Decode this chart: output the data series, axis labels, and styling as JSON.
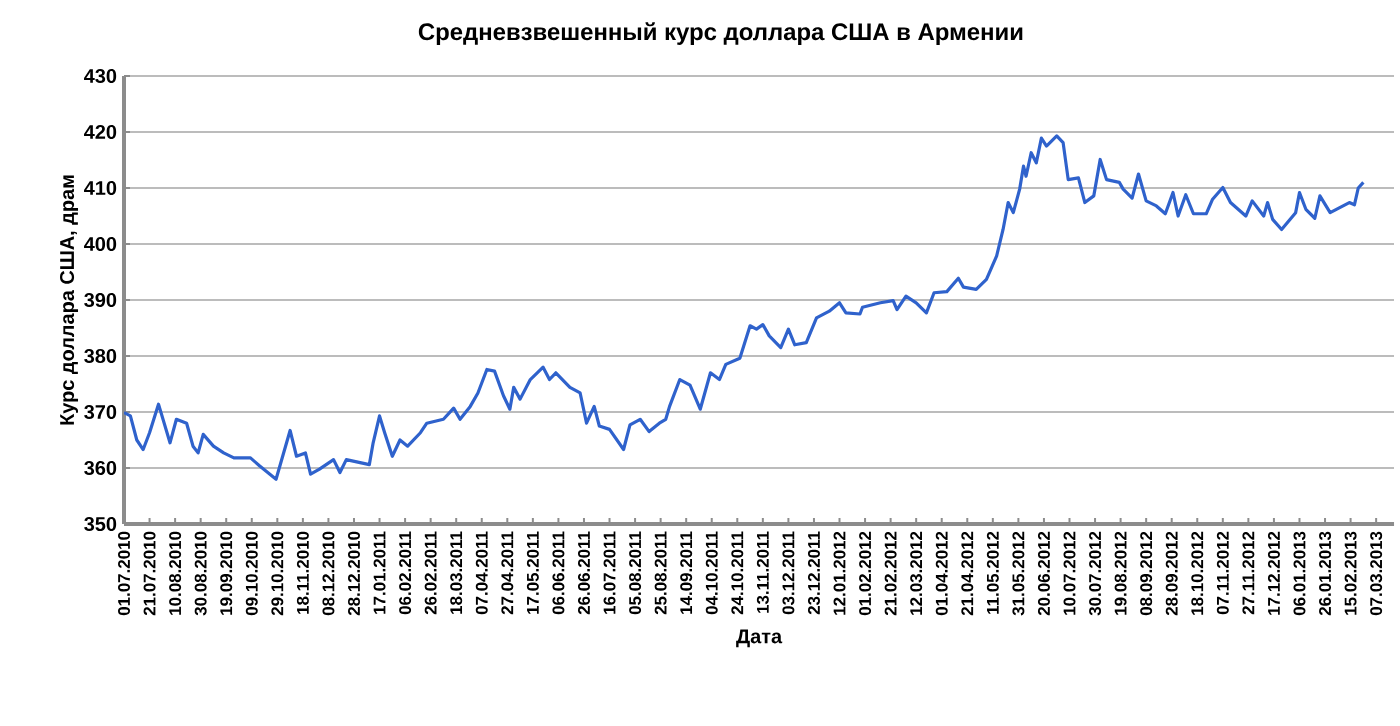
{
  "chart_data": {
    "type": "line",
    "title": "Средневзвешенный курс доллара США в Армении",
    "xlabel": "Дата",
    "ylabel": "Курс доллара США, драм",
    "xlim": [
      "2010-07-01",
      "2013-03-21"
    ],
    "ylim": [
      350,
      430
    ],
    "yticks": [
      350,
      360,
      370,
      380,
      390,
      400,
      410,
      420,
      430
    ],
    "grid": "y",
    "legend": false,
    "marker": "none",
    "line_style": "solid",
    "xticks": [
      {
        "value": "2010-07-01",
        "label": "01.07.2010"
      },
      {
        "value": "2010-07-21",
        "label": "21.07.2010"
      },
      {
        "value": "2010-08-10",
        "label": "10.08.2010"
      },
      {
        "value": "2010-08-30",
        "label": "30.08.2010"
      },
      {
        "value": "2010-09-19",
        "label": "19.09.2010"
      },
      {
        "value": "2010-10-09",
        "label": "09.10.2010"
      },
      {
        "value": "2010-10-29",
        "label": "29.10.2010"
      },
      {
        "value": "2010-11-18",
        "label": "18.11.2010"
      },
      {
        "value": "2010-12-08",
        "label": "08.12.2010"
      },
      {
        "value": "2010-12-28",
        "label": "28.12.2010"
      },
      {
        "value": "2011-01-17",
        "label": "17.01.2011"
      },
      {
        "value": "2011-02-06",
        "label": "06.02.2011"
      },
      {
        "value": "2011-02-26",
        "label": "26.02.2011"
      },
      {
        "value": "2011-03-18",
        "label": "18.03.2011"
      },
      {
        "value": "2011-04-07",
        "label": "07.04.2011"
      },
      {
        "value": "2011-04-27",
        "label": "27.04.2011"
      },
      {
        "value": "2011-05-17",
        "label": "17.05.2011"
      },
      {
        "value": "2011-06-06",
        "label": "06.06.2011"
      },
      {
        "value": "2011-06-26",
        "label": "26.06.2011"
      },
      {
        "value": "2011-07-16",
        "label": "16.07.2011"
      },
      {
        "value": "2011-08-05",
        "label": "05.08.2011"
      },
      {
        "value": "2011-08-25",
        "label": "25.08.2011"
      },
      {
        "value": "2011-09-14",
        "label": "14.09.2011"
      },
      {
        "value": "2011-10-04",
        "label": "04.10.2011"
      },
      {
        "value": "2011-10-24",
        "label": "24.10.2011"
      },
      {
        "value": "2011-11-13",
        "label": "13.11.2011"
      },
      {
        "value": "2011-12-03",
        "label": "03.12.2011"
      },
      {
        "value": "2011-12-23",
        "label": "23.12.2011"
      },
      {
        "value": "2012-01-12",
        "label": "12.01.2012"
      },
      {
        "value": "2012-02-01",
        "label": "01.02.2012"
      },
      {
        "value": "2012-02-21",
        "label": "21.02.2012"
      },
      {
        "value": "2012-03-12",
        "label": "12.03.2012"
      },
      {
        "value": "2012-04-01",
        "label": "01.04.2012"
      },
      {
        "value": "2012-04-21",
        "label": "21.04.2012"
      },
      {
        "value": "2012-05-11",
        "label": "11.05.2012"
      },
      {
        "value": "2012-05-31",
        "label": "31.05.2012"
      },
      {
        "value": "2012-06-20",
        "label": "20.06.2012"
      },
      {
        "value": "2012-07-10",
        "label": "10.07.2012"
      },
      {
        "value": "2012-07-30",
        "label": "30.07.2012"
      },
      {
        "value": "2012-08-19",
        "label": "19.08.2012"
      },
      {
        "value": "2012-09-08",
        "label": "08.09.2012"
      },
      {
        "value": "2012-09-28",
        "label": "28.09.2012"
      },
      {
        "value": "2012-10-18",
        "label": "18.10.2012"
      },
      {
        "value": "2012-11-07",
        "label": "07.11.2012"
      },
      {
        "value": "2012-11-27",
        "label": "27.11.2012"
      },
      {
        "value": "2012-12-17",
        "label": "17.12.2012"
      },
      {
        "value": "2013-01-06",
        "label": "06.01.2013"
      },
      {
        "value": "2013-01-26",
        "label": "26.01.2013"
      },
      {
        "value": "2013-02-15",
        "label": "15.02.2013"
      },
      {
        "value": "2013-03-07",
        "label": "07.03.2013"
      }
    ],
    "series": [
      {
        "color": "#2f62cc",
        "x": [
          "2010-07-01",
          "2010-07-06",
          "2010-07-11",
          "2010-07-16",
          "2010-07-21",
          "2010-07-28",
          "2010-08-06",
          "2010-08-11",
          "2010-08-19",
          "2010-08-24",
          "2010-08-28",
          "2010-09-01",
          "2010-09-09",
          "2010-09-17",
          "2010-09-25",
          "2010-10-08",
          "2010-10-15",
          "2010-10-28",
          "2010-11-08",
          "2010-11-13",
          "2010-11-20",
          "2010-11-24",
          "2010-12-01",
          "2010-12-12",
          "2010-12-17",
          "2010-12-22",
          "2011-01-09",
          "2011-01-12",
          "2011-01-17",
          "2011-01-21",
          "2011-01-27",
          "2011-02-02",
          "2011-02-08",
          "2011-02-18",
          "2011-02-23",
          "2011-03-08",
          "2011-03-16",
          "2011-03-21",
          "2011-03-29",
          "2011-04-04",
          "2011-04-11",
          "2011-04-17",
          "2011-04-24",
          "2011-04-29",
          "2011-05-02",
          "2011-05-07",
          "2011-05-15",
          "2011-05-25",
          "2011-05-30",
          "2011-06-04",
          "2011-06-15",
          "2011-06-23",
          "2011-06-28",
          "2011-07-04",
          "2011-07-08",
          "2011-07-16",
          "2011-07-27",
          "2011-08-01",
          "2011-08-09",
          "2011-08-16",
          "2011-08-24",
          "2011-08-29",
          "2011-09-01",
          "2011-09-09",
          "2011-09-17",
          "2011-09-25",
          "2011-10-03",
          "2011-10-10",
          "2011-10-15",
          "2011-10-26",
          "2011-11-03",
          "2011-11-08",
          "2011-11-13",
          "2011-11-18",
          "2011-11-27",
          "2011-12-03",
          "2011-12-08",
          "2011-12-17",
          "2011-12-25",
          "2012-01-04",
          "2012-01-12",
          "2012-01-17",
          "2012-01-28",
          "2012-01-30",
          "2012-02-13",
          "2012-02-23",
          "2012-02-26",
          "2012-03-04",
          "2012-03-12",
          "2012-03-20",
          "2012-03-26",
          "2012-04-05",
          "2012-04-14",
          "2012-04-18",
          "2012-04-28",
          "2012-05-06",
          "2012-05-14",
          "2012-05-19",
          "2012-05-23",
          "2012-05-27",
          "2012-06-01",
          "2012-06-04",
          "2012-06-06",
          "2012-06-10",
          "2012-06-14",
          "2012-06-18",
          "2012-06-22",
          "2012-06-30",
          "2012-07-05",
          "2012-07-09",
          "2012-07-17",
          "2012-07-22",
          "2012-07-29",
          "2012-08-03",
          "2012-08-08",
          "2012-08-18",
          "2012-08-21",
          "2012-08-28",
          "2012-09-02",
          "2012-09-08",
          "2012-09-16",
          "2012-09-23",
          "2012-09-29",
          "2012-10-03",
          "2012-10-09",
          "2012-10-15",
          "2012-10-25",
          "2012-10-30",
          "2012-11-07",
          "2012-11-13",
          "2012-11-25",
          "2012-11-30",
          "2012-12-09",
          "2012-12-12",
          "2012-12-16",
          "2012-12-23",
          "2013-01-03",
          "2013-01-06",
          "2013-01-11",
          "2013-01-18",
          "2013-01-22",
          "2013-01-30",
          "2013-02-14",
          "2013-02-18",
          "2013-02-21",
          "2013-02-25"
        ],
        "values": [
          369.9,
          369.3,
          365,
          363.3,
          366.3,
          371.4,
          364.5,
          368.7,
          368,
          363.9,
          362.7,
          366,
          363.9,
          362.7,
          361.8,
          361.8,
          360.4,
          358,
          366.7,
          362.1,
          362.7,
          358.9,
          359.8,
          361.5,
          359.2,
          361.5,
          360.6,
          364.5,
          369.3,
          366.3,
          362.1,
          365,
          363.9,
          366.3,
          368,
          368.7,
          370.7,
          368.7,
          371,
          373.4,
          377.6,
          377.3,
          372.9,
          370.5,
          374.4,
          372.3,
          375.8,
          378,
          375.8,
          377,
          374.4,
          373.4,
          368,
          371,
          367.5,
          366.9,
          363.3,
          367.7,
          368.7,
          366.5,
          368,
          368.7,
          371,
          375.8,
          374.8,
          370.5,
          377,
          375.8,
          378.5,
          379.6,
          385.4,
          384.8,
          385.6,
          383.6,
          381.5,
          384.8,
          382,
          382.4,
          386.8,
          388,
          389.5,
          387.7,
          387.5,
          388.7,
          389.5,
          389.9,
          388.3,
          390.7,
          389.5,
          387.7,
          391.3,
          391.5,
          393.9,
          392.3,
          391.9,
          393.7,
          397.9,
          402.6,
          407.4,
          405.6,
          409.8,
          413.9,
          412.1,
          416.3,
          414.5,
          418.9,
          417.5,
          419.3,
          418.1,
          411.5,
          411.8,
          407.4,
          408.6,
          415.1,
          411.5,
          411,
          409.8,
          408.2,
          412.5,
          407.7,
          406.8,
          405.4,
          409.2,
          405,
          408.8,
          405.4,
          405.4,
          408,
          410.1,
          407.4,
          405,
          407.7,
          405,
          407.4,
          404.4,
          402.6,
          405.6,
          409.2,
          406.2,
          404.6,
          408.6,
          405.6,
          407.4,
          407,
          410,
          411
        ]
      }
    ]
  }
}
